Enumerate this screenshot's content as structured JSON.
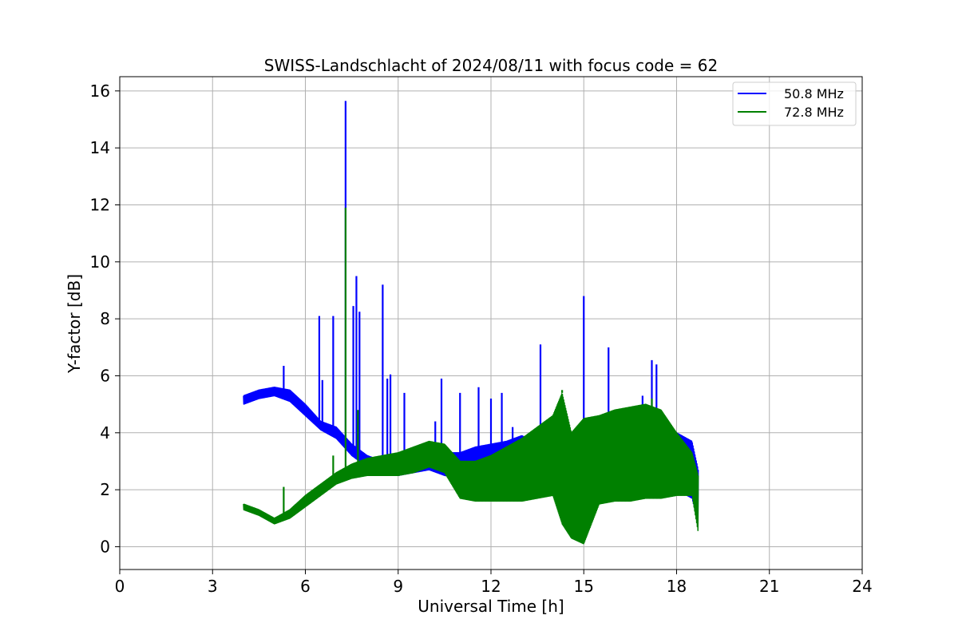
{
  "chart_data": {
    "type": "line",
    "title": "SWISS-Landschlacht of 2024/08/11 with focus code = 62",
    "xlabel": "Universal Time [h]",
    "ylabel": "Y-factor [dB]",
    "xlim": [
      0,
      24
    ],
    "ylim": [
      -0.8,
      16.5
    ],
    "xticks": [
      0,
      3,
      6,
      9,
      12,
      15,
      18,
      21,
      24
    ],
    "yticks": [
      0,
      2,
      4,
      6,
      8,
      10,
      12,
      14,
      16
    ],
    "grid": true,
    "legend_position": "top-right",
    "series": [
      {
        "name": "50.8 MHz",
        "color": "#0000ff",
        "band": {
          "x": [
            4.0,
            4.5,
            5.0,
            5.5,
            6.0,
            6.5,
            7.0,
            7.5,
            8.0,
            8.5,
            9.0,
            9.5,
            10.0,
            10.5,
            11.0,
            11.5,
            12.0,
            12.5,
            13.0,
            13.5,
            14.0,
            14.5,
            15.0,
            15.5,
            16.0,
            16.5,
            17.0,
            17.5,
            18.0,
            18.5,
            18.7
          ],
          "low": [
            5.0,
            5.2,
            5.3,
            5.1,
            4.6,
            4.1,
            3.8,
            3.2,
            2.8,
            2.5,
            2.5,
            2.6,
            2.7,
            2.5,
            2.4,
            2.5,
            2.5,
            2.4,
            2.3,
            2.1,
            1.9,
            0.6,
            0.9,
            2.0,
            2.2,
            2.2,
            2.4,
            2.3,
            2.0,
            1.7,
            0.8
          ],
          "high": [
            5.3,
            5.5,
            5.6,
            5.5,
            5.0,
            4.4,
            4.2,
            3.6,
            3.2,
            3.0,
            3.1,
            3.3,
            3.5,
            3.3,
            3.3,
            3.5,
            3.6,
            3.7,
            3.9,
            3.6,
            3.2,
            2.8,
            2.9,
            3.5,
            3.6,
            3.8,
            4.3,
            4.5,
            4.0,
            3.7,
            2.7
          ]
        },
        "spikes": [
          [
            5.3,
            6.35
          ],
          [
            6.45,
            8.1
          ],
          [
            6.55,
            5.85
          ],
          [
            6.9,
            8.1
          ],
          [
            7.3,
            15.65
          ],
          [
            7.55,
            8.45
          ],
          [
            7.65,
            9.5
          ],
          [
            7.75,
            8.25
          ],
          [
            8.5,
            9.2
          ],
          [
            8.65,
            5.9
          ],
          [
            8.75,
            6.05
          ],
          [
            9.2,
            5.4
          ],
          [
            10.2,
            4.4
          ],
          [
            10.4,
            5.9
          ],
          [
            11.0,
            5.4
          ],
          [
            11.6,
            5.6
          ],
          [
            12.0,
            5.2
          ],
          [
            12.35,
            5.4
          ],
          [
            12.7,
            4.2
          ],
          [
            13.6,
            7.1
          ],
          [
            15.0,
            8.8
          ],
          [
            15.8,
            7.0
          ],
          [
            16.9,
            5.3
          ],
          [
            17.2,
            6.55
          ],
          [
            17.35,
            6.4
          ],
          [
            18.0,
            4.0
          ]
        ]
      },
      {
        "name": "72.8 MHz",
        "color": "#008000",
        "band": {
          "x": [
            4.0,
            4.5,
            5.0,
            5.5,
            6.0,
            6.5,
            7.0,
            7.5,
            8.0,
            8.5,
            9.0,
            9.5,
            10.0,
            10.5,
            11.0,
            11.5,
            12.0,
            12.5,
            13.0,
            13.5,
            14.0,
            14.3,
            14.6,
            15.0,
            15.5,
            16.0,
            16.5,
            17.0,
            17.5,
            18.0,
            18.5,
            18.7
          ],
          "low": [
            1.3,
            1.1,
            0.8,
            1.0,
            1.4,
            1.8,
            2.2,
            2.4,
            2.5,
            2.5,
            2.5,
            2.6,
            2.8,
            2.6,
            1.7,
            1.6,
            1.6,
            1.6,
            1.6,
            1.7,
            1.8,
            0.8,
            0.3,
            0.1,
            1.5,
            1.6,
            1.6,
            1.7,
            1.7,
            1.8,
            1.8,
            0.5
          ],
          "high": [
            1.5,
            1.3,
            1.0,
            1.3,
            1.8,
            2.2,
            2.6,
            2.9,
            3.1,
            3.2,
            3.3,
            3.5,
            3.7,
            3.6,
            3.0,
            3.0,
            3.2,
            3.5,
            3.8,
            4.2,
            4.6,
            5.4,
            4.0,
            4.5,
            4.6,
            4.8,
            4.9,
            5.0,
            4.8,
            4.0,
            3.3,
            2.5
          ]
        },
        "spikes": [
          [
            5.3,
            2.1
          ],
          [
            7.3,
            11.9
          ],
          [
            7.7,
            4.8
          ],
          [
            6.9,
            3.2
          ],
          [
            14.3,
            5.5
          ],
          [
            17.2,
            5.2
          ]
        ]
      }
    ]
  }
}
